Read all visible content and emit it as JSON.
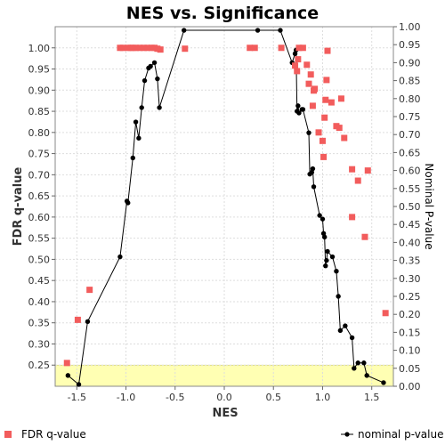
{
  "chart_data": {
    "type": "scatter",
    "title": "NES vs. Significance",
    "xlabel": "NES",
    "ylabel": "FDR q-value",
    "y2label": "Nominal P-value",
    "xlim": [
      -1.72,
      1.72
    ],
    "ylim": [
      0.2,
      1.05
    ],
    "y2lim": [
      0.0,
      1.0
    ],
    "xticks": [
      "-1.5",
      "-1.0",
      "-0.5",
      "0.0",
      "0.5",
      "1.0",
      "1.5"
    ],
    "yticks": [
      "0.25",
      "0.30",
      "0.35",
      "0.40",
      "0.45",
      "0.50",
      "0.55",
      "0.60",
      "0.65",
      "0.70",
      "0.75",
      "0.80",
      "0.85",
      "0.90",
      "0.95",
      "1.00"
    ],
    "y2ticks": [
      "0.00",
      "0.05",
      "0.10",
      "0.15",
      "0.20",
      "0.25",
      "0.30",
      "0.35",
      "0.40",
      "0.45",
      "0.50",
      "0.55",
      "0.60",
      "0.65",
      "0.70",
      "0.75",
      "0.80",
      "0.85",
      "0.90",
      "0.95",
      "1.00"
    ],
    "highlight_band": {
      "axis": "y",
      "from": 0.2,
      "to": 0.25,
      "color": "#ffffb3"
    },
    "grid": true,
    "legend_position": "bottom",
    "series": [
      {
        "name": "FDR q-value",
        "axis": "left",
        "marker": "square",
        "color": "#f25c5c",
        "points": [
          [
            -1.6,
            0.255
          ],
          [
            -1.49,
            0.357
          ],
          [
            -1.37,
            0.428
          ],
          [
            -1.06,
            1.0
          ],
          [
            -1.03,
            1.0
          ],
          [
            -0.98,
            1.0
          ],
          [
            -0.95,
            1.0
          ],
          [
            -0.93,
            1.0
          ],
          [
            -0.9,
            1.0
          ],
          [
            -0.86,
            1.0
          ],
          [
            -0.82,
            1.0
          ],
          [
            -0.78,
            1.0
          ],
          [
            -0.74,
            1.0
          ],
          [
            -0.71,
            1.0
          ],
          [
            -0.68,
            0.998
          ],
          [
            -0.65,
            0.996
          ],
          [
            -0.4,
            0.998
          ],
          [
            0.26,
            1.0
          ],
          [
            0.31,
            1.0
          ],
          [
            0.58,
            1.0
          ],
          [
            0.72,
            0.958
          ],
          [
            0.74,
            0.945
          ],
          [
            0.75,
            0.973
          ],
          [
            0.76,
            1.0
          ],
          [
            0.8,
            1.0
          ],
          [
            0.84,
            0.96
          ],
          [
            0.86,
            0.915
          ],
          [
            0.88,
            0.937
          ],
          [
            0.91,
            0.899
          ],
          [
            0.92,
            0.903
          ],
          [
            0.9,
            0.863
          ],
          [
            0.96,
            0.8
          ],
          [
            1.0,
            0.78
          ],
          [
            1.01,
            0.742
          ],
          [
            1.02,
            0.835
          ],
          [
            1.03,
            0.877
          ],
          [
            1.04,
            0.924
          ],
          [
            1.05,
            0.993
          ],
          [
            1.09,
            0.871
          ],
          [
            1.14,
            0.815
          ],
          [
            1.17,
            0.811
          ],
          [
            1.19,
            0.88
          ],
          [
            1.22,
            0.787
          ],
          [
            1.3,
            0.713
          ],
          [
            1.3,
            0.6
          ],
          [
            1.36,
            0.686
          ],
          [
            1.43,
            0.553
          ],
          [
            1.46,
            0.71
          ],
          [
            1.64,
            0.373
          ]
        ]
      },
      {
        "name": "nominal p-value",
        "axis": "right",
        "marker": "circle-line",
        "color": "#000000",
        "points": [
          [
            -1.59,
            0.03
          ],
          [
            -1.48,
            0.005
          ],
          [
            -1.39,
            0.18
          ],
          [
            -1.06,
            0.36
          ],
          [
            -0.99,
            0.515
          ],
          [
            -0.98,
            0.51
          ],
          [
            -0.93,
            0.635
          ],
          [
            -0.9,
            0.735
          ],
          [
            -0.87,
            0.69
          ],
          [
            -0.84,
            0.775
          ],
          [
            -0.81,
            0.85
          ],
          [
            -0.77,
            0.885
          ],
          [
            -0.75,
            0.89
          ],
          [
            -0.71,
            0.9
          ],
          [
            -0.68,
            0.855
          ],
          [
            -0.66,
            0.775
          ],
          [
            -0.41,
            0.99
          ],
          [
            0.34,
            0.99
          ],
          [
            0.57,
            0.99
          ],
          [
            0.69,
            0.9
          ],
          [
            0.72,
            0.925
          ],
          [
            0.73,
            0.935
          ],
          [
            0.74,
            0.765
          ],
          [
            0.75,
            0.78
          ],
          [
            0.76,
            0.76
          ],
          [
            0.79,
            0.77
          ],
          [
            0.8,
            0.77
          ],
          [
            0.86,
            0.705
          ],
          [
            0.87,
            0.59
          ],
          [
            0.89,
            0.595
          ],
          [
            0.9,
            0.605
          ],
          [
            0.91,
            0.555
          ],
          [
            0.97,
            0.475
          ],
          [
            1.0,
            0.465
          ],
          [
            1.01,
            0.425
          ],
          [
            1.02,
            0.415
          ],
          [
            1.03,
            0.335
          ],
          [
            1.04,
            0.35
          ],
          [
            1.05,
            0.375
          ],
          [
            1.1,
            0.36
          ],
          [
            1.14,
            0.32
          ],
          [
            1.16,
            0.25
          ],
          [
            1.18,
            0.155
          ],
          [
            1.23,
            0.168
          ],
          [
            1.3,
            0.135
          ],
          [
            1.32,
            0.05
          ],
          [
            1.36,
            0.065
          ],
          [
            1.42,
            0.065
          ],
          [
            1.45,
            0.03
          ],
          [
            1.62,
            0.01
          ]
        ]
      }
    ]
  },
  "legend": {
    "fdr_label": "FDR q-value",
    "pval_label": "nominal p-value"
  }
}
